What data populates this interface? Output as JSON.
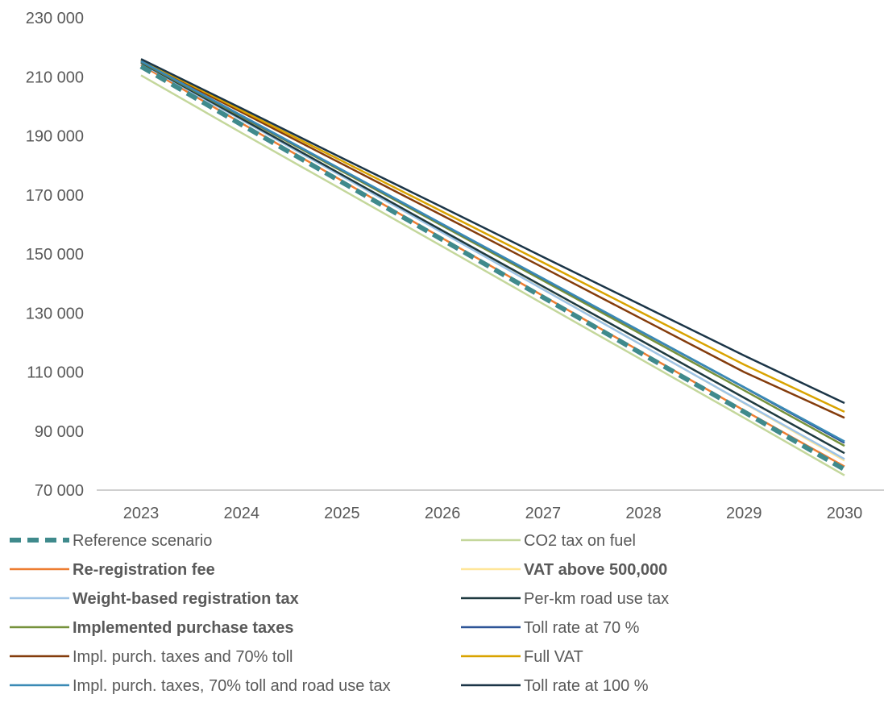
{
  "chart_data": {
    "type": "line",
    "title": "",
    "xlabel": "",
    "ylabel": "",
    "x": [
      "2023",
      "2024",
      "2025",
      "2026",
      "2027",
      "2028",
      "2029",
      "2030"
    ],
    "ylim": [
      70000,
      230000
    ],
    "yticks": [
      70000,
      90000,
      110000,
      130000,
      150000,
      170000,
      190000,
      210000,
      230000
    ],
    "ytick_labels": [
      "70 000",
      "90 000",
      "110 000",
      "130 000",
      "150 000",
      "170 000",
      "190 000",
      "210 000",
      "230 000"
    ],
    "grid": false,
    "legend_position": "bottom",
    "series": [
      {
        "name": "Reference scenario",
        "color": "#3F8A8C",
        "dashed": true,
        "bold": false,
        "values": [
          213500,
          193800,
          174300,
          154800,
          135300,
          115900,
          96500,
          77000
        ]
      },
      {
        "name": "CO2 tax on fuel",
        "color": "#C4D79B",
        "dashed": false,
        "bold": false,
        "values": [
          210500,
          191000,
          171800,
          152500,
          133100,
          113800,
          94500,
          75000
        ]
      },
      {
        "name": "Re-registration fee",
        "color": "#ED7D31",
        "dashed": false,
        "bold": true,
        "values": [
          214000,
          194300,
          174800,
          155300,
          135800,
          116400,
          97000,
          78000
        ]
      },
      {
        "name": "VAT above 500,000",
        "color": "#FFE699",
        "dashed": false,
        "bold": true,
        "values": [
          215000,
          195700,
          176500,
          157300,
          138100,
          118800,
          99500,
          80000
        ]
      },
      {
        "name": "Weight-based registration tax",
        "color": "#9DC3E6",
        "dashed": false,
        "bold": true,
        "values": [
          214500,
          195400,
          176300,
          157200,
          138000,
          118800,
          99600,
          80500
        ]
      },
      {
        "name": "Per-km road use tax",
        "color": "#1F3A40",
        "dashed": false,
        "bold": false,
        "values": [
          214800,
          195800,
          176800,
          157900,
          139000,
          120200,
          101300,
          82500
        ]
      },
      {
        "name": "Implemented purchase taxes",
        "color": "#76923C",
        "dashed": false,
        "bold": true,
        "values": [
          215000,
          196500,
          178000,
          159500,
          141000,
          122400,
          103800,
          85000
        ]
      },
      {
        "name": "Toll rate at 70 %",
        "color": "#2E5597",
        "dashed": false,
        "bold": false,
        "values": [
          215200,
          196800,
          178400,
          160000,
          141600,
          123200,
          104800,
          86000
        ]
      },
      {
        "name": "Impl. purch. taxes and 70% toll",
        "color": "#843C0C",
        "dashed": false,
        "bold": false,
        "values": [
          215500,
          198000,
          180500,
          163000,
          145400,
          127700,
          110000,
          94500
        ]
      },
      {
        "name": "Full VAT",
        "color": "#D9A300",
        "dashed": false,
        "bold": false,
        "values": [
          215800,
          198600,
          181500,
          164300,
          147100,
          129800,
          112500,
          96500
        ]
      },
      {
        "name": "Impl. purch. taxes, 70% toll and road use tax",
        "color": "#3A8AB5",
        "dashed": false,
        "bold": false,
        "values": [
          215300,
          196900,
          178500,
          160100,
          141700,
          123300,
          104900,
          86500
        ]
      },
      {
        "name": "Toll rate at 100 %",
        "color": "#1B3547",
        "dashed": false,
        "bold": false,
        "values": [
          216000,
          199300,
          182500,
          165800,
          149000,
          132300,
          115600,
          99500
        ]
      }
    ]
  }
}
